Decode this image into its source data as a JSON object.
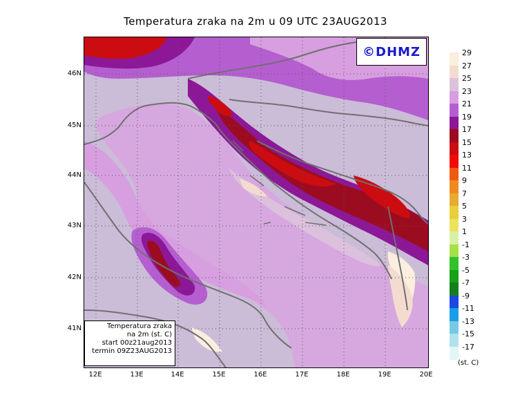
{
  "title": "Temperatura zraka na 2m u 09 UTC 23AUG2013",
  "logo": "©DHMZ",
  "info_box": [
    "Temperatura zraka",
    "na 2m (st. C)",
    "start 00z21aug2013",
    "termin 09Z23AUG2013"
  ],
  "lat_labels": [
    "46N",
    "45N",
    "44N",
    "43N",
    "42N",
    "41N"
  ],
  "lon_labels": [
    "12E",
    "13E",
    "14E",
    "15E",
    "16E",
    "17E",
    "18E",
    "19E",
    "20E"
  ],
  "legend": {
    "labels": [
      "29",
      "27",
      "25",
      "23",
      "21",
      "19",
      "17",
      "15",
      "13",
      "11",
      "9",
      "7",
      "5",
      "3",
      "1",
      "-1",
      "-3",
      "-5",
      "-7",
      "-9",
      "-11",
      "-13",
      "-15",
      "-17"
    ],
    "colors": [
      "#fbeede",
      "#f3dccf",
      "#dcc1dc",
      "#d79fdf",
      "#b55ed0",
      "#8c1897",
      "#9c0c20",
      "#cc0c10",
      "#f20a0a",
      "#ef5a10",
      "#ef8a22",
      "#e8aa33",
      "#eace3a",
      "#ebe35b",
      "#d9f0a6",
      "#a6e046",
      "#32c22c",
      "#16a016",
      "#137e1e",
      "#1e46e0",
      "#189ee6",
      "#78c8e6",
      "#b0e2ec",
      "#e2f6fa"
    ],
    "unit": "(st. C)"
  },
  "colors": {
    "sea": "#d7a8e0",
    "land": "#cbbcd8",
    "coast": "#707070"
  }
}
